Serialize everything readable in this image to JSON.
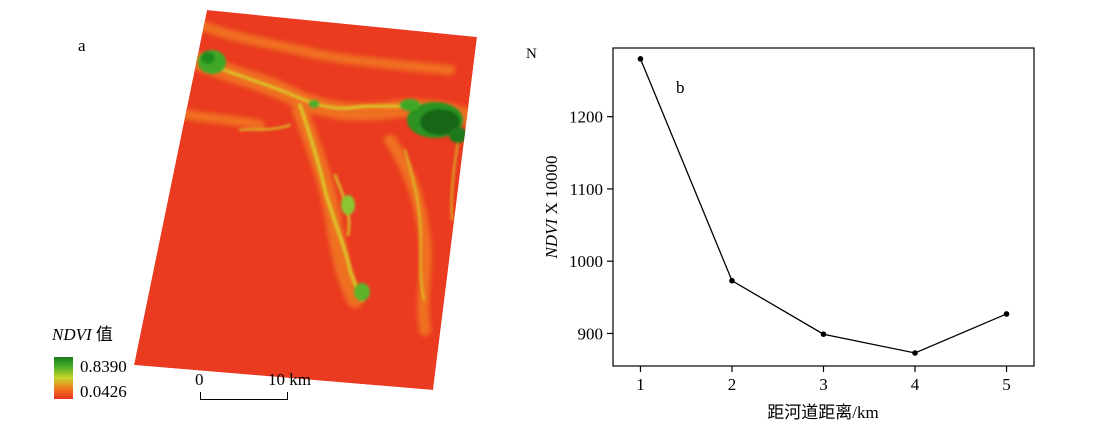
{
  "panel_a": {
    "label": "a",
    "legend": {
      "title_italic": "NDVI",
      "title_suffix": " 值",
      "max_value": "0.8390",
      "min_value": "0.0426",
      "colors": {
        "high": "#1a7a1a",
        "mid": "#c9d62a",
        "low": "#e8331f"
      }
    },
    "scale_bar": {
      "start": "0",
      "end": "10 km"
    },
    "north_arrow": {
      "label": "N",
      "icon": "north-arrow-icon"
    }
  },
  "chart_data": {
    "type": "line",
    "label": "b",
    "x": [
      1,
      2,
      3,
      4,
      5
    ],
    "series": [
      {
        "values": [
          1280,
          973,
          899,
          873,
          927
        ]
      }
    ],
    "xlabel": "距河道距离/km",
    "ylabel_italic": "NDVI",
    "ylabel_suffix": " X 10000",
    "xticks": [
      1,
      2,
      3,
      4,
      5
    ],
    "yticks": [
      900,
      1000,
      1100,
      1200
    ],
    "xlim": [
      0.7,
      5.3
    ],
    "ylim": [
      855,
      1295
    ],
    "grid": false,
    "line_color": "#000000"
  }
}
